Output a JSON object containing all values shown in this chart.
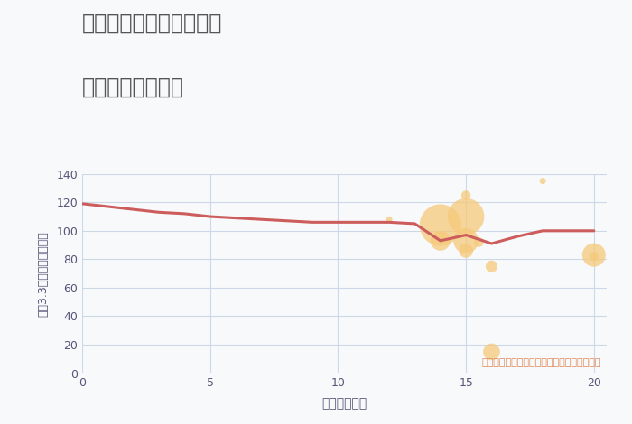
{
  "title_line1": "兵庫県西宮市小曽根町の",
  "title_line2": "駅距離別土地価格",
  "xlabel": "駅距離（分）",
  "ylabel": "坪（3.3㎡）単価（万円）",
  "annotation": "円の大きさは、取引のあった物件面積を示す",
  "xlim": [
    0,
    20.5
  ],
  "ylim": [
    0,
    140
  ],
  "xticks": [
    0,
    5,
    10,
    15,
    20
  ],
  "yticks": [
    0,
    20,
    40,
    60,
    80,
    100,
    120,
    140
  ],
  "line_x": [
    0,
    1,
    2,
    3,
    4,
    5,
    6,
    7,
    8,
    9,
    10,
    11,
    12,
    13,
    14,
    15,
    16,
    17,
    18,
    20
  ],
  "line_y": [
    119,
    117,
    115,
    113,
    112,
    110,
    109,
    108,
    107,
    106,
    106,
    106,
    106,
    105,
    93,
    97,
    91,
    96,
    100,
    100
  ],
  "line_color": "#cd5c5c",
  "line_width": 2.2,
  "bubble_x": [
    12,
    14,
    14,
    15,
    15,
    15,
    15,
    15.5,
    16,
    16,
    18,
    20,
    20
  ],
  "bubble_y": [
    108,
    104,
    93,
    125,
    110,
    93,
    86,
    92,
    75,
    15,
    135,
    83,
    82
  ],
  "bubble_size": [
    25,
    1100,
    250,
    55,
    850,
    400,
    130,
    60,
    90,
    180,
    25,
    350,
    55
  ],
  "bubble_color": "#f5c97a",
  "bubble_alpha": 0.75,
  "bg_color": "#f8f9fb",
  "grid_color": "#ccd8e8",
  "title_color": "#555555",
  "axis_label_color": "#555577",
  "annotation_color": "#e08858"
}
